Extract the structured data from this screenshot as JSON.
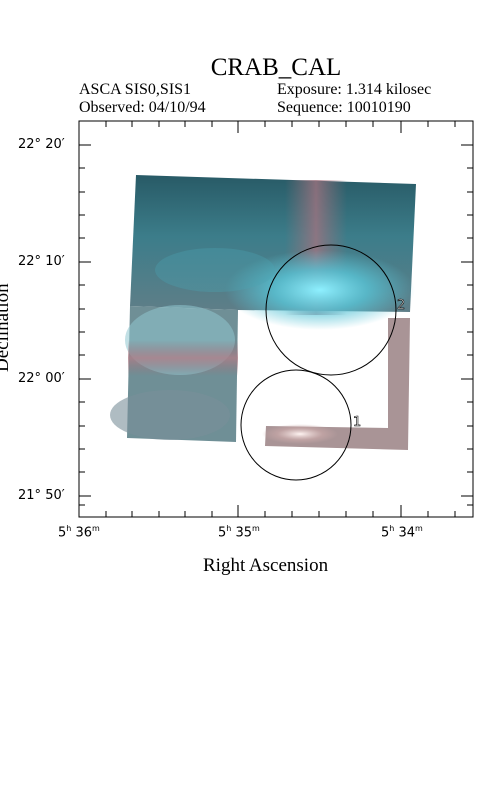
{
  "header": {
    "title": "CRAB_CAL",
    "instrument": "ASCA SIS0,SIS1",
    "observed": "Observed: 04/10/94",
    "exposure": "Exposure: 1.314 kilosec",
    "sequence": "Sequence: 10010190"
  },
  "axes": {
    "x_label": "Right Ascension",
    "y_label": "Declination",
    "x_ticks": [
      {
        "h": "5",
        "hs": "h",
        "m": "36",
        "ms": "m"
      },
      {
        "h": "5",
        "hs": "h",
        "m": "35",
        "ms": "m"
      },
      {
        "h": "5",
        "hs": "h",
        "m": "34",
        "ms": "m"
      }
    ],
    "y_ticks": [
      {
        "deg": "22",
        "amin": "20"
      },
      {
        "deg": "22",
        "amin": "10"
      },
      {
        "deg": "22",
        "amin": "00"
      },
      {
        "deg": "21",
        "amin": "50"
      }
    ]
  },
  "regions": [
    {
      "label": "1"
    },
    {
      "label": "2"
    }
  ],
  "colors": {
    "teal": "#3e7f8c",
    "cyan_bright": "#5fd4e0",
    "pink": "#a98b8f",
    "frame": "#000000"
  }
}
